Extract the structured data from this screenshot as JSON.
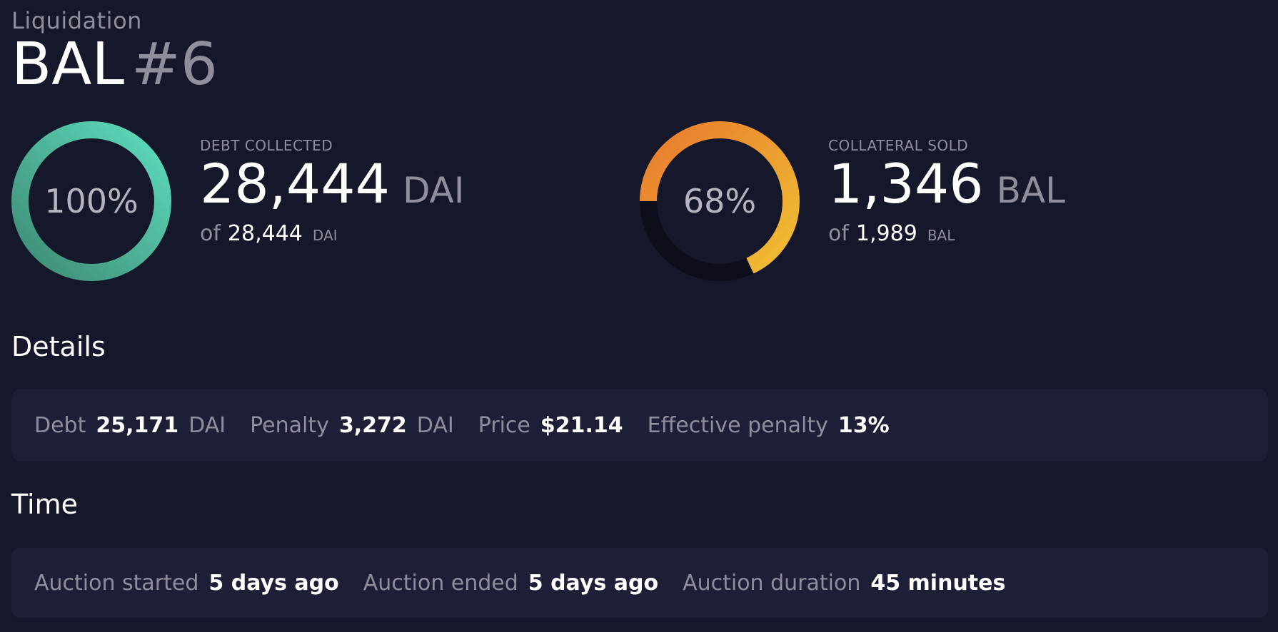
{
  "header": {
    "eyebrow": "Liquidation",
    "asset": "BAL",
    "number": "#6"
  },
  "debt_collected": {
    "caption": "DEBT COLLECTED",
    "percent_label": "100%",
    "percent_value": 1.0,
    "value": "28,444",
    "unit": "DAI",
    "of_word": "of",
    "total": "28,444",
    "total_unit": "DAI",
    "colors": {
      "start": "#3e8a74",
      "end": "#5edcbd"
    }
  },
  "collateral_sold": {
    "caption": "COLLATERAL SOLD",
    "percent_label": "68%",
    "percent_value": 0.68,
    "value": "1,346",
    "unit": "BAL",
    "of_word": "of",
    "total": "1,989",
    "total_unit": "BAL",
    "colors": {
      "start": "#f0c033",
      "end": "#e87a2e",
      "track": "#0d0e1c"
    }
  },
  "details": {
    "title": "Details",
    "debt": {
      "label": "Debt",
      "value": "25,171",
      "unit": "DAI"
    },
    "penalty": {
      "label": "Penalty",
      "value": "3,272",
      "unit": "DAI"
    },
    "price": {
      "label": "Price",
      "value": "$21.14"
    },
    "effective_penalty": {
      "label": "Effective penalty",
      "value": "13%"
    }
  },
  "time": {
    "title": "Time",
    "auction_started": {
      "label": "Auction started",
      "value": "5 days ago"
    },
    "auction_ended": {
      "label": "Auction ended",
      "value": "5 days ago"
    },
    "auction_duration": {
      "label": "Auction duration",
      "value": "45 minutes"
    }
  }
}
